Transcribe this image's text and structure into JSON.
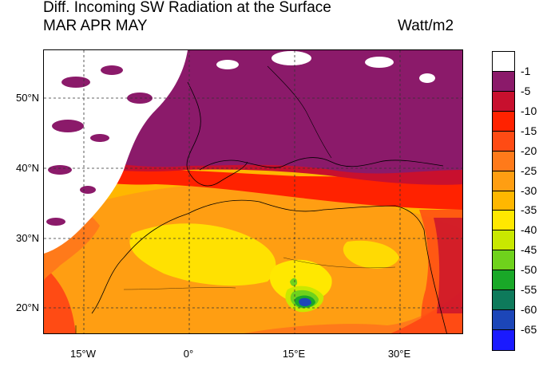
{
  "title_line1": "Diff. Incoming SW Radiation at the Surface",
  "title_line2": "MAR APR MAY",
  "units": "Watt/m2",
  "lat_labels": [
    "50°N",
    "40°N",
    "30°N",
    "20°N"
  ],
  "lon_labels": [
    "15°W",
    "0°",
    "15°E",
    "30°E"
  ],
  "legend": {
    "labels": [
      "-1",
      "-5",
      "-10",
      "-15",
      "-20",
      "-25",
      "-30",
      "-35",
      "-40",
      "-45",
      "-50",
      "-55",
      "-60",
      "-65"
    ],
    "colors": [
      "#ffffff",
      "#8b1a6a",
      "#c8102e",
      "#ff2200",
      "#ff4b14",
      "#ff7a1a",
      "#ff9e12",
      "#ffb700",
      "#ffe800",
      "#c9e800",
      "#6fd21c",
      "#19a828",
      "#0e7a5b",
      "#1c46b8",
      "#1a1aff"
    ]
  },
  "map": {
    "region": "North Africa, Mediterranean and Europe",
    "lon_range": [
      -20,
      39
    ],
    "lat_range": [
      13,
      56
    ],
    "hotspot_value": "-60"
  }
}
